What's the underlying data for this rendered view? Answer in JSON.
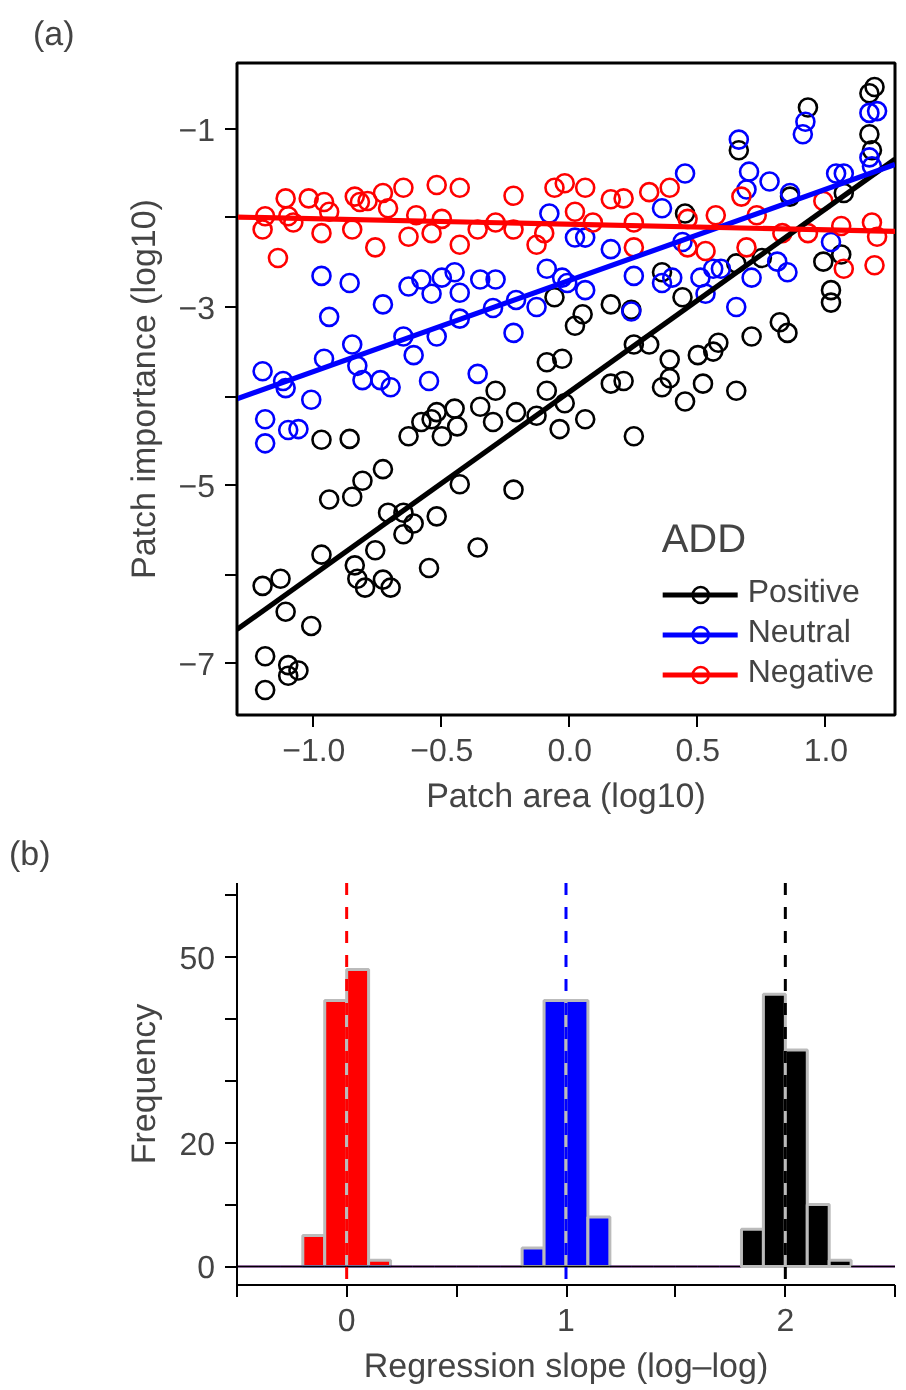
{
  "chart_data": [
    {
      "type": "scatter",
      "title": "(a)",
      "xlabel": "Patch area (log10)",
      "ylabel": "Patch importance (log10)",
      "xlim": [
        -1.3,
        1.27
      ],
      "xticks": [
        {
          "value": -1,
          "label": "−1.0"
        },
        {
          "value": -0.5,
          "label": "−0.5"
        },
        {
          "value": 0,
          "label": "0.0"
        },
        {
          "value": 0.5,
          "label": "0.5"
        },
        {
          "value": 1,
          "label": "1.0"
        }
      ],
      "ylim": [
        -7.58,
        -0.26
      ],
      "yticks": [
        {
          "value": -1,
          "label": "−1"
        },
        {
          "value": -2,
          "label": null
        },
        {
          "value": -3,
          "label": "−3"
        },
        {
          "value": -4,
          "label": null
        },
        {
          "value": -5,
          "label": "−5"
        },
        {
          "value": -6,
          "label": null
        },
        {
          "value": -7,
          "label": "−7"
        }
      ],
      "legend": "bottom right",
      "legend_title": "ADD",
      "marker": "circle",
      "series": [
        {
          "name": "Positive",
          "color": "#000000",
          "x": [
            -0.97,
            -0.86,
            -0.63,
            -0.58,
            -0.54,
            -0.52,
            -0.5,
            -0.45,
            -0.44,
            -0.35,
            -0.3,
            -0.29,
            -0.21,
            -0.13,
            -0.09,
            -0.09,
            -0.04,
            -0.03,
            -0.02,
            -0.06,
            0.02,
            0.05,
            0.06,
            0.16,
            0.16,
            0.21,
            0.24,
            0.25,
            0.25,
            0.31,
            0.36,
            0.39,
            0.39,
            0.36,
            0.44,
            0.45,
            0.45,
            0.5,
            0.52,
            0.56,
            0.58,
            0.65,
            0.65,
            0.66,
            0.71,
            0.75,
            0.82,
            0.85,
            0.86,
            0.93,
            0.99,
            1.02,
            1.02,
            1.06,
            1.07,
            1.17,
            1.17,
            1.19,
            1.18,
            -0.73,
            -0.94,
            -0.85,
            -0.81,
            -0.71,
            -0.65,
            -0.61,
            -0.65,
            -0.52,
            -0.43,
            -0.36,
            -0.22,
            -0.55,
            -0.97,
            -0.84,
            -0.76,
            -0.73,
            -0.7,
            -0.83,
            -0.8,
            -1.2,
            -1.13,
            -1.11,
            -1.01,
            -1.19,
            -1.1,
            -1.06,
            -1.1,
            -1.19
          ],
          "values": [
            -4.49,
            -4.48,
            -4.45,
            -4.29,
            -4.26,
            -4.18,
            -4.45,
            -4.14,
            -4.34,
            -4.12,
            -4.29,
            -3.94,
            -4.18,
            -4.22,
            -3.62,
            -3.94,
            -4.37,
            -3.58,
            -4.08,
            -2.89,
            -3.21,
            -3.08,
            -4.26,
            -2.97,
            -3.86,
            -3.83,
            -3.03,
            -3.42,
            -4.45,
            -3.42,
            -3.9,
            -3.8,
            -3.59,
            -2.61,
            -2.89,
            -1.95,
            -4.06,
            -3.54,
            -3.86,
            -3.5,
            -3.4,
            -3.94,
            -2.51,
            -1.24,
            -3.33,
            -2.45,
            -3.17,
            -3.29,
            -1.76,
            -0.76,
            -2.49,
            -2.95,
            -2.81,
            -2.41,
            -1.72,
            -1.06,
            -0.6,
            -0.53,
            -1.24,
            -4.82,
            -5.16,
            -5.13,
            -4.95,
            -5.31,
            -5.31,
            -5.43,
            -5.55,
            -5.35,
            -4.99,
            -5.7,
            -5.05,
            -5.93,
            -5.78,
            -5.9,
            -5.73,
            -6.06,
            -6.15,
            -6.05,
            -6.15,
            -6.13,
            -6.05,
            -6.42,
            -6.58,
            -6.92,
            -7.02,
            -7.08,
            -7.14,
            -7.3
          ]
        },
        {
          "name": "Neutral",
          "color": "#0000ff",
          "x": [
            -1.2,
            -1.19,
            -1.19,
            -1.12,
            -1.11,
            -1.1,
            -1.06,
            -1.01,
            -0.97,
            -0.96,
            -0.94,
            -0.86,
            -0.85,
            -0.83,
            -0.81,
            -0.74,
            -0.73,
            -0.7,
            -0.65,
            -0.63,
            -0.61,
            -0.58,
            -0.55,
            -0.54,
            -0.52,
            -0.5,
            -0.45,
            -0.43,
            -0.43,
            -0.36,
            -0.35,
            -0.3,
            -0.29,
            -0.22,
            -0.21,
            -0.13,
            -0.09,
            -0.08,
            -0.03,
            -0.01,
            0.02,
            0.06,
            0.06,
            0.16,
            0.24,
            0.25,
            0.36,
            0.36,
            0.4,
            0.44,
            0.45,
            0.51,
            0.53,
            0.56,
            0.59,
            0.65,
            0.66,
            0.69,
            0.7,
            0.71,
            0.78,
            0.81,
            0.85,
            0.86,
            0.91,
            0.92,
            1.02,
            1.04,
            1.07,
            1.17,
            1.17,
            1.18,
            1.2
          ],
          "values": [
            -3.72,
            -4.26,
            -4.53,
            -3.83,
            -3.91,
            -4.38,
            -4.37,
            -4.04,
            -2.65,
            -3.58,
            -3.11,
            -2.73,
            -3.42,
            -3.66,
            -3.82,
            -3.82,
            -2.97,
            -3.9,
            -3.33,
            -2.77,
            -3.54,
            -2.69,
            -3.83,
            -2.85,
            -3.33,
            -2.67,
            -2.61,
            -2.84,
            -3.13,
            -3.75,
            -2.69,
            -3.01,
            -2.69,
            -3.29,
            -2.92,
            -3.0,
            -2.57,
            -1.95,
            -2.67,
            -2.73,
            -2.22,
            -2.81,
            -2.22,
            -2.35,
            -3.05,
            -2.65,
            -1.89,
            -2.73,
            -2.67,
            -2.27,
            -1.5,
            -2.67,
            -2.85,
            -2.57,
            -2.57,
            -3.0,
            -1.12,
            -1.68,
            -1.48,
            -2.67,
            -1.59,
            -2.49,
            -2.61,
            -1.72,
            -1.06,
            -0.92,
            -2.27,
            -1.5,
            -1.5,
            -0.82,
            -1.32,
            -1.42,
            -0.8
          ]
        },
        {
          "name": "Negative",
          "color": "#ff0000",
          "x": [
            -1.2,
            -1.19,
            -1.14,
            -1.11,
            -1.1,
            -1.08,
            -1.02,
            -0.96,
            -0.97,
            -0.94,
            -0.85,
            -0.84,
            -0.82,
            -0.79,
            -0.76,
            -0.73,
            -0.71,
            -0.65,
            -0.63,
            -0.6,
            -0.54,
            -0.52,
            -0.5,
            -0.43,
            -0.43,
            -0.36,
            -0.29,
            -0.22,
            -0.22,
            -0.13,
            -0.1,
            -0.06,
            -0.02,
            0.02,
            0.06,
            0.09,
            0.16,
            0.21,
            0.25,
            0.25,
            0.31,
            0.39,
            0.46,
            0.46,
            0.53,
            0.57,
            0.67,
            0.69,
            0.73,
            0.83,
            0.93,
            0.99,
            1.06,
            1.07,
            1.18,
            1.2,
            1.19
          ],
          "values": [
            -2.13,
            -1.98,
            -2.45,
            -1.78,
            -1.98,
            -2.05,
            -1.78,
            -1.82,
            -2.17,
            -1.93,
            -2.13,
            -1.76,
            -1.82,
            -1.81,
            -2.33,
            -1.72,
            -1.89,
            -1.66,
            -2.21,
            -1.97,
            -2.17,
            -1.63,
            -2.01,
            -1.66,
            -2.3,
            -2.13,
            -2.05,
            -1.75,
            -2.13,
            -2.3,
            -2.17,
            -1.66,
            -1.61,
            -1.93,
            -1.66,
            -2.05,
            -1.79,
            -1.78,
            -2.05,
            -2.33,
            -1.71,
            -1.66,
            -2.01,
            -2.33,
            -2.37,
            -1.97,
            -1.76,
            -2.33,
            -1.97,
            -2.17,
            -2.17,
            -1.81,
            -2.09,
            -2.57,
            -2.05,
            -2.21,
            -2.53
          ]
        },
        {
          "type": "line",
          "marker": "none",
          "color": "#000000",
          "x": [
            -1.3,
            1.27
          ],
          "values": [
            -6.62,
            -1.34
          ]
        },
        {
          "type": "line",
          "marker": "none",
          "color": "#0000ff",
          "x": [
            -1.3,
            1.27
          ],
          "values": [
            -4.03,
            -1.4
          ]
        },
        {
          "type": "line",
          "marker": "none",
          "color": "#ff0000",
          "x": [
            -1.3,
            1.27
          ],
          "values": [
            -1.99,
            -2.15
          ]
        }
      ]
    },
    {
      "type": "histogram",
      "title": "(b)",
      "xlabel": "Regression slope (log–log)",
      "ylabel": "Frequency",
      "xlim": [
        -0.5,
        2.5
      ],
      "xticks": [
        {
          "value": -0.5,
          "label": null
        },
        0,
        {
          "value": 0.5,
          "label": null
        },
        1,
        {
          "value": 1.5,
          "label": null
        },
        2,
        {
          "value": 2.5,
          "label": null
        }
      ],
      "ylim": [
        -3,
        62
      ],
      "yticks": [
        0,
        {
          "value": 10,
          "label": null
        },
        20,
        {
          "value": 30,
          "label": null
        },
        {
          "value": 40,
          "label": null
        },
        50,
        {
          "value": 60,
          "label": null
        }
      ],
      "bins": [
        -0.5,
        -0.4,
        -0.3,
        -0.2,
        -0.1,
        0,
        0.1,
        0.2,
        0.3,
        0.4,
        0.5,
        0.6,
        0.7,
        0.8,
        0.9,
        1.0,
        1.1,
        1.2,
        1.3,
        1.4,
        1.5,
        1.6,
        1.7,
        1.8,
        1.9,
        2.0,
        2.1,
        2.2,
        2.3,
        2.4,
        2.5
      ],
      "series": [
        {
          "color": "#ff0000",
          "values": [
            0,
            0,
            0,
            5,
            43,
            48,
            1,
            0,
            0,
            0,
            0,
            0,
            0,
            0,
            0,
            0,
            0,
            0,
            0,
            0,
            0,
            0,
            0,
            0,
            0,
            0,
            0,
            0,
            0,
            0
          ]
        },
        {
          "color": "#0000ff",
          "values": [
            0,
            0,
            0,
            0,
            0,
            0,
            0,
            0,
            0,
            0,
            0,
            0,
            0,
            3,
            43,
            43,
            8,
            0,
            0,
            0,
            0,
            0,
            0,
            0,
            0,
            0,
            0,
            0,
            0,
            0
          ]
        },
        {
          "color": "#000000",
          "values": [
            0,
            0,
            0,
            0,
            0,
            0,
            0,
            0,
            0,
            0,
            0,
            0,
            0,
            0,
            0,
            0,
            0,
            0,
            0,
            0,
            0,
            0,
            0,
            6,
            44,
            35,
            10,
            1,
            0,
            0
          ]
        }
      ],
      "ref_lines": [
        {
          "axis": "x",
          "value": 0,
          "color": "#ff0000",
          "line_style": "dashed"
        },
        {
          "axis": "x",
          "value": 1,
          "color": "#0000ff",
          "line_style": "dashed"
        },
        {
          "axis": "x",
          "value": 2,
          "color": "#000000",
          "line_style": "dashed"
        }
      ]
    }
  ]
}
